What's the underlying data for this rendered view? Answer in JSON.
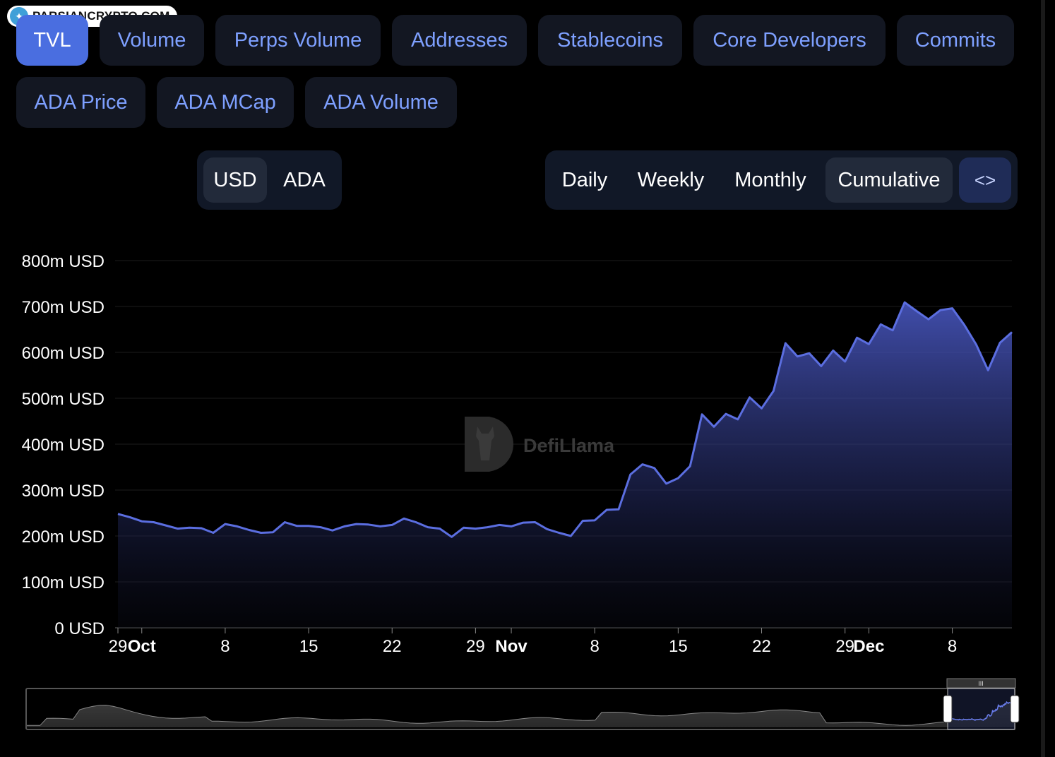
{
  "watermark_badge": "PARSIANCRYPTO.COM",
  "metric_tabs": [
    {
      "label": "TVL",
      "active": true
    },
    {
      "label": "Volume"
    },
    {
      "label": "Perps Volume"
    },
    {
      "label": "Addresses"
    },
    {
      "label": "Stablecoins"
    },
    {
      "label": "Core Developers"
    },
    {
      "label": "Commits"
    },
    {
      "label": "ADA Price"
    },
    {
      "label": "ADA MCap"
    },
    {
      "label": "ADA Volume"
    }
  ],
  "denomination": {
    "options": [
      "USD",
      "ADA"
    ],
    "selected": "USD"
  },
  "period": {
    "options": [
      "Daily",
      "Weekly",
      "Monthly",
      "Cumulative"
    ],
    "selected": "Cumulative",
    "embed_icon": "code-brackets-icon"
  },
  "chart_watermark": "DefiLlama",
  "chart_data": {
    "type": "area",
    "yunit": "USD",
    "ylim": [
      0,
      800000000
    ],
    "yticks": [
      "800m USD",
      "700m USD",
      "600m USD",
      "500m USD",
      "400m USD",
      "300m USD",
      "200m USD",
      "100m USD",
      "0 USD"
    ],
    "xticks": [
      {
        "label": "29",
        "date": "2024-09-29"
      },
      {
        "label": "Oct",
        "date": "2024-10-01",
        "bold": true
      },
      {
        "label": "8",
        "date": "2024-10-08"
      },
      {
        "label": "15",
        "date": "2024-10-15"
      },
      {
        "label": "22",
        "date": "2024-10-22"
      },
      {
        "label": "29",
        "date": "2024-10-29"
      },
      {
        "label": "Nov",
        "date": "2024-11-01",
        "bold": true
      },
      {
        "label": "8",
        "date": "2024-11-08"
      },
      {
        "label": "15",
        "date": "2024-11-15"
      },
      {
        "label": "22",
        "date": "2024-11-22"
      },
      {
        "label": "29",
        "date": "2024-11-29"
      },
      {
        "label": "Dec",
        "date": "2024-12-01",
        "bold": true
      },
      {
        "label": "8",
        "date": "2024-12-08"
      }
    ],
    "x_start": "2024-09-29",
    "grid": true,
    "line_color": "#5b6ee0",
    "series": [
      {
        "values": [
          248,
          241,
          232,
          230,
          223,
          216,
          218,
          217,
          207,
          226,
          221,
          213,
          207,
          208,
          230,
          222,
          222,
          219,
          212,
          221,
          226,
          225,
          221,
          224,
          238,
          230,
          219,
          216,
          198,
          218,
          216,
          219,
          224,
          221,
          229,
          230,
          215,
          207,
          200,
          233,
          234,
          257,
          258,
          334,
          356,
          348,
          314,
          326,
          352,
          465,
          438,
          466,
          454,
          502,
          478,
          516,
          620,
          591,
          598,
          570,
          604,
          580,
          632,
          618,
          661,
          648,
          709,
          690,
          672,
          692,
          696,
          660,
          617,
          561,
          621,
          644
        ]
      }
    ]
  },
  "range_slider": {
    "start_fraction": 0.937,
    "end_fraction": 1.0
  }
}
